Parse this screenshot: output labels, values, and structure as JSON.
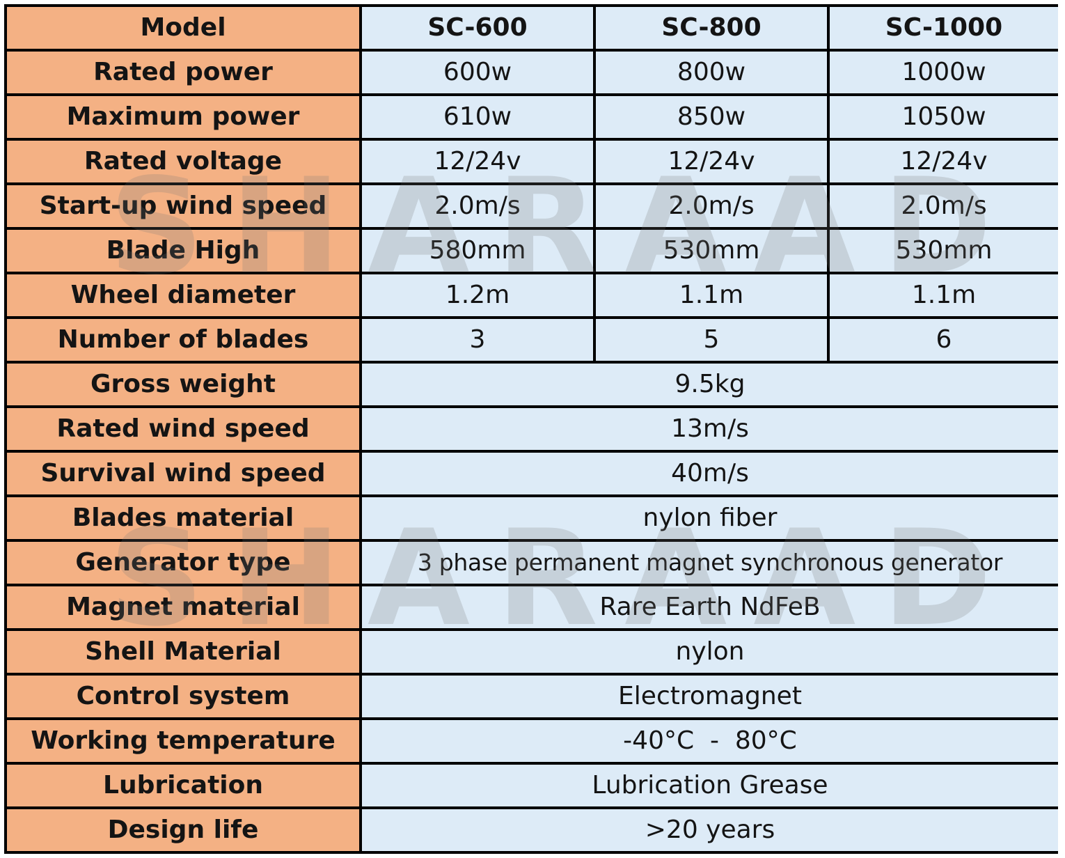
{
  "header": {
    "label": "Model",
    "models": [
      "SC-600",
      "SC-800",
      "SC-1000"
    ]
  },
  "per_model_rows": [
    {
      "label": "Rated power",
      "values": [
        "600w",
        "800w",
        "1000w"
      ]
    },
    {
      "label": "Maximum power",
      "values": [
        "610w",
        "850w",
        "1050w"
      ]
    },
    {
      "label": "Rated voltage",
      "values": [
        "12/24v",
        "12/24v",
        "12/24v"
      ]
    },
    {
      "label": "Start-up wind speed",
      "values": [
        "2.0m/s",
        "2.0m/s",
        "2.0m/s"
      ]
    },
    {
      "label": "Blade High",
      "values": [
        "580mm",
        "530mm",
        "530mm"
      ]
    },
    {
      "label": "Wheel diameter",
      "values": [
        "1.2m",
        "1.1m",
        "1.1m"
      ]
    },
    {
      "label": "Number of blades",
      "values": [
        "3",
        "5",
        "6"
      ]
    }
  ],
  "shared_rows": [
    {
      "label": "Gross weight",
      "value": "9.5kg"
    },
    {
      "label": "Rated wind speed",
      "value": "13m/s"
    },
    {
      "label": "Survival wind speed",
      "value": "40m/s"
    },
    {
      "label": "Blades material",
      "value": "nylon fiber"
    },
    {
      "label": "Generator type",
      "value": "3 phase permanent magnet synchronous generator"
    },
    {
      "label": "Magnet material",
      "value": "Rare Earth NdFeB"
    },
    {
      "label": "Shell Material",
      "value": "nylon"
    },
    {
      "label": "Control system",
      "value": "Electromagnet"
    },
    {
      "label": "Working temperature",
      "value": "-40°C  -  80°C"
    },
    {
      "label": "Lubrication",
      "value": "Lubrication Grease"
    },
    {
      "label": "Design life",
      "value": ">20 years"
    }
  ],
  "watermark": {
    "text": "SHARAAD"
  },
  "colors": {
    "label_bg": "#f4b184",
    "value_bg": "#ddebf7",
    "grid": "#000000"
  }
}
